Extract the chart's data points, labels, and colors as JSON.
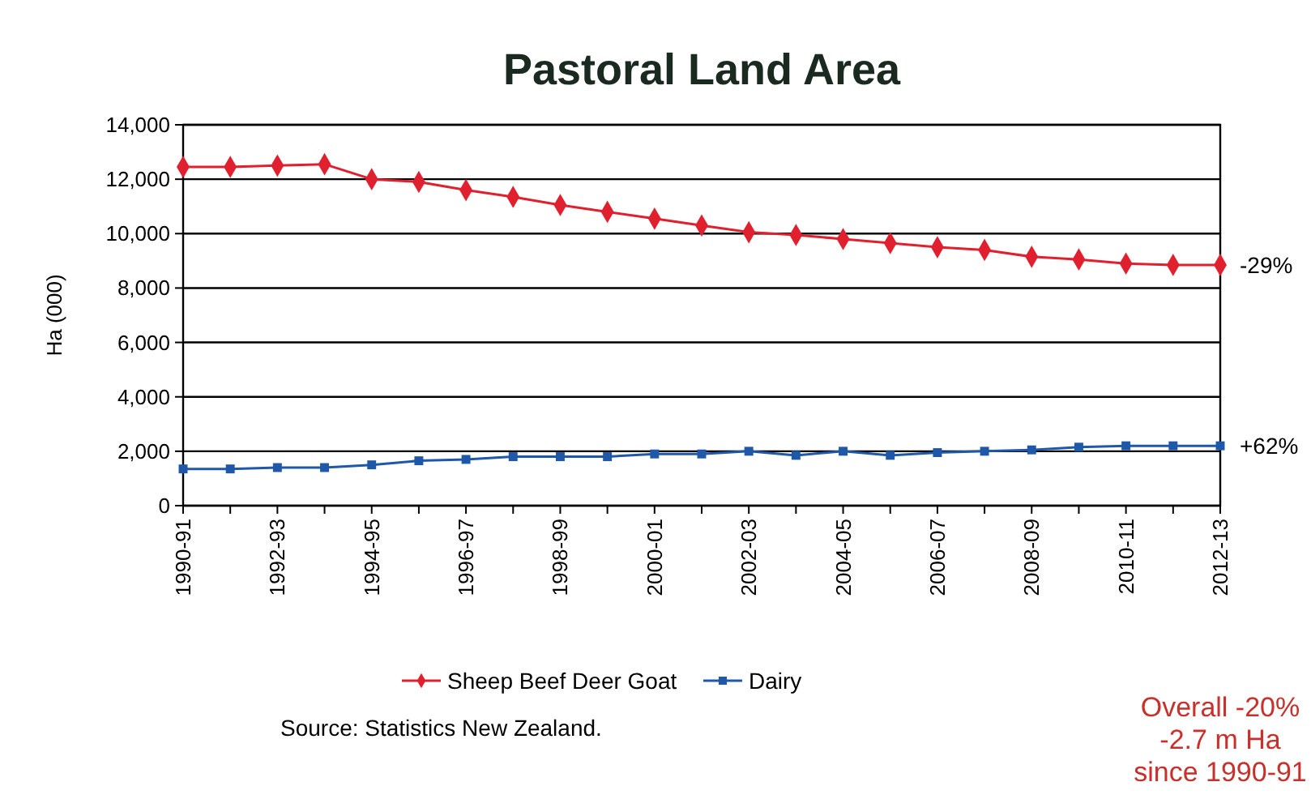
{
  "chart_data": {
    "type": "line",
    "title": "Pastoral Land Area",
    "ylabel": "Ha (000)",
    "categories": [
      "1990-91",
      null,
      "1992-93",
      null,
      "1994-95",
      null,
      "1996-97",
      null,
      "1998-99",
      null,
      "2000-01",
      null,
      "2002-03",
      null,
      "2004-05",
      null,
      "2006-07",
      null,
      "2008-09",
      null,
      "2010-11",
      null,
      "2012-13"
    ],
    "series": [
      {
        "name": "Sheep Beef Deer Goat",
        "color": "#e0202e",
        "marker": "diamond",
        "values": [
          12450,
          12450,
          12500,
          12550,
          12000,
          11900,
          11600,
          11350,
          11050,
          10800,
          10550,
          10300,
          10050,
          9950,
          9800,
          9650,
          9500,
          9400,
          9150,
          9050,
          8900,
          8850,
          8850
        ]
      },
      {
        "name": "Dairy",
        "color": "#1f58a8",
        "marker": "square",
        "values": [
          1350,
          1350,
          1400,
          1400,
          1500,
          1650,
          1700,
          1800,
          1800,
          1800,
          1900,
          1900,
          2000,
          1850,
          2000,
          1850,
          1950,
          2000,
          2050,
          2150,
          2200,
          2200,
          2200
        ]
      }
    ],
    "ylim": [
      0,
      14000
    ],
    "yticks": [
      {
        "value": 0,
        "label": "0"
      },
      {
        "value": 2000,
        "label": "2,000"
      },
      {
        "value": 4000,
        "label": "4,000"
      },
      {
        "value": 6000,
        "label": "6,000"
      },
      {
        "value": 8000,
        "label": "8,000"
      },
      {
        "value": 10000,
        "label": "10,000"
      },
      {
        "value": 12000,
        "label": "12,000"
      },
      {
        "value": 14000,
        "label": "14,000"
      }
    ],
    "grid": "y",
    "legend": "bottom",
    "annotations": [
      {
        "text": "-29%",
        "x": "2012-13",
        "y": 8850
      },
      {
        "text": "+62%",
        "x": "2012-13",
        "y": 2200
      },
      "Source:  Statistics New Zealand.",
      "Overall  -20%\n-2.7 m Ha\nsince 1990-91"
    ]
  }
}
